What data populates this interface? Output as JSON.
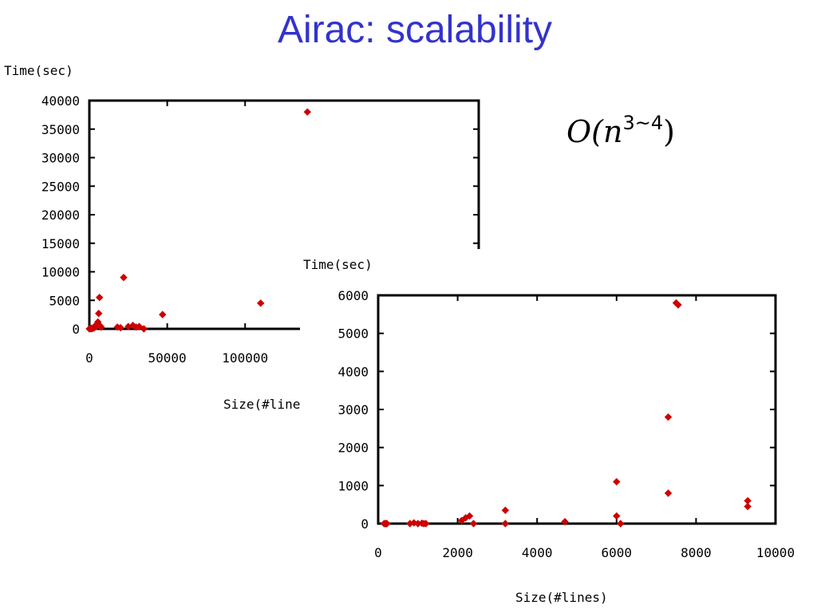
{
  "slide": {
    "title": "Airac: scalability",
    "complexity_label": {
      "base": "O(n",
      "exponent": "3~4",
      "close": ")"
    }
  },
  "colors": {
    "title": "#3333cc",
    "marker": "#cc0000"
  },
  "chart_data": [
    {
      "type": "scatter",
      "ylabel": "Time(sec)",
      "xlabel": "Size(#lines)",
      "xlim": [
        0,
        250000
      ],
      "ylim": [
        0,
        40000
      ],
      "xticks": [
        0,
        50000,
        100000
      ],
      "yticks": [
        0,
        5000,
        10000,
        15000,
        20000,
        25000,
        30000,
        35000,
        40000
      ],
      "grid": false,
      "points": [
        [
          0,
          0
        ],
        [
          500,
          50
        ],
        [
          1000,
          100
        ],
        [
          1500,
          30
        ],
        [
          2000,
          80
        ],
        [
          2500,
          200
        ],
        [
          3000,
          150
        ],
        [
          3500,
          300
        ],
        [
          4000,
          600
        ],
        [
          4500,
          400
        ],
        [
          5000,
          800
        ],
        [
          5500,
          1200
        ],
        [
          6000,
          2700
        ],
        [
          6500,
          5500
        ],
        [
          7000,
          500
        ],
        [
          7500,
          300
        ],
        [
          18000,
          300
        ],
        [
          20000,
          200
        ],
        [
          22000,
          9000
        ],
        [
          25000,
          400
        ],
        [
          28000,
          600
        ],
        [
          30000,
          300
        ],
        [
          32000,
          400
        ],
        [
          35000,
          0
        ],
        [
          47000,
          2500
        ],
        [
          110000,
          4500
        ],
        [
          140000,
          38000
        ]
      ]
    },
    {
      "type": "scatter",
      "ylabel": "Time(sec)",
      "xlabel": "Size(#lines)",
      "xlim": [
        0,
        10000
      ],
      "ylim": [
        0,
        6000
      ],
      "xticks": [
        0,
        2000,
        4000,
        6000,
        8000,
        10000
      ],
      "yticks": [
        0,
        1000,
        2000,
        3000,
        4000,
        5000,
        6000
      ],
      "grid": false,
      "points": [
        [
          150,
          0
        ],
        [
          180,
          0
        ],
        [
          200,
          0
        ],
        [
          220,
          0
        ],
        [
          800,
          0
        ],
        [
          900,
          20
        ],
        [
          1000,
          0
        ],
        [
          1100,
          10
        ],
        [
          1150,
          0
        ],
        [
          1200,
          0
        ],
        [
          2100,
          80
        ],
        [
          2200,
          150
        ],
        [
          2300,
          200
        ],
        [
          2400,
          0
        ],
        [
          3200,
          350
        ],
        [
          3200,
          0
        ],
        [
          4700,
          50
        ],
        [
          6000,
          1100
        ],
        [
          6000,
          200
        ],
        [
          6100,
          0
        ],
        [
          7300,
          2800
        ],
        [
          7300,
          800
        ],
        [
          7500,
          5800
        ],
        [
          7550,
          5750
        ],
        [
          9300,
          600
        ],
        [
          9300,
          450
        ]
      ]
    }
  ]
}
